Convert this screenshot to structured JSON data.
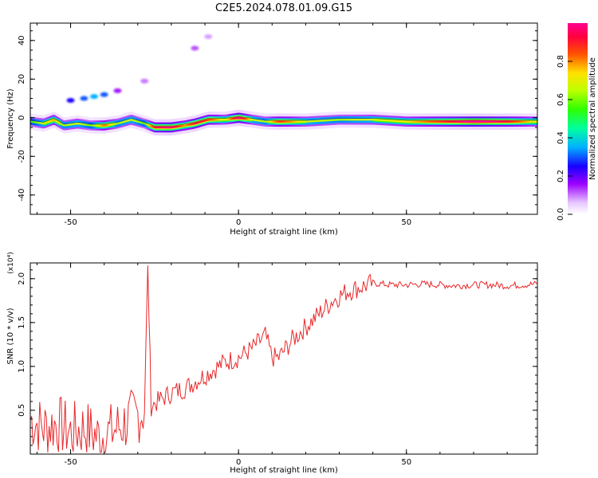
{
  "title": "C2E5.2024.078.01.09.G15",
  "chart_data": [
    {
      "type": "heatmap",
      "xlabel": "Height of straight line (km)",
      "ylabel": "Frequency (Hz)",
      "xlim": [
        -62,
        89
      ],
      "ylim": [
        -50,
        49
      ],
      "xticks": [
        -50,
        0,
        50
      ],
      "yticks": [
        -40,
        -20,
        0,
        20,
        40
      ],
      "colorbar": {
        "label": "Normalized spectral amplitude",
        "ticks": [
          "0.0",
          "0.2",
          "0.4",
          "0.6",
          "0.8"
        ],
        "range": [
          0,
          1
        ],
        "colors": [
          "#ffffff",
          "#e8c8ff",
          "#9a00ff",
          "#1a00ff",
          "#00b0ff",
          "#00ffa0",
          "#30ff00",
          "#c0ff00",
          "#ffe000",
          "#ff5000",
          "#ff0040",
          "#ff0090"
        ]
      },
      "ridge": [
        {
          "x": -62,
          "y": -2,
          "a": 0.45
        },
        {
          "x": -58,
          "y": -3,
          "a": 0.6
        },
        {
          "x": -55,
          "y": -1,
          "a": 0.7
        },
        {
          "x": -52,
          "y": -4,
          "a": 0.55
        },
        {
          "x": -48,
          "y": -3,
          "a": 0.6
        },
        {
          "x": -44,
          "y": -4,
          "a": 0.5
        },
        {
          "x": -40,
          "y": -4,
          "a": 0.75
        },
        {
          "x": -36,
          "y": -3,
          "a": 0.55
        },
        {
          "x": -32,
          "y": -1,
          "a": 0.6
        },
        {
          "x": -28,
          "y": -3,
          "a": 0.5
        },
        {
          "x": -25,
          "y": -5,
          "a": 0.85
        },
        {
          "x": -20,
          "y": -5,
          "a": 0.9
        },
        {
          "x": -16,
          "y": -4,
          "a": 0.7
        },
        {
          "x": -13,
          "y": -3,
          "a": 0.85
        },
        {
          "x": -9,
          "y": -1,
          "a": 0.8
        },
        {
          "x": -4,
          "y": -1,
          "a": 0.6
        },
        {
          "x": 0,
          "y": 0,
          "a": 0.95
        },
        {
          "x": 4,
          "y": -1,
          "a": 0.6
        },
        {
          "x": 8,
          "y": -2,
          "a": 0.55
        },
        {
          "x": 12,
          "y": -2,
          "a": 0.8
        },
        {
          "x": 20,
          "y": -2,
          "a": 0.6
        },
        {
          "x": 30,
          "y": -1,
          "a": 0.55
        },
        {
          "x": 40,
          "y": -1,
          "a": 0.6
        },
        {
          "x": 50,
          "y": -2,
          "a": 0.65
        },
        {
          "x": 60,
          "y": -2,
          "a": 0.8
        },
        {
          "x": 70,
          "y": -2,
          "a": 0.95
        },
        {
          "x": 80,
          "y": -2,
          "a": 0.85
        },
        {
          "x": 89,
          "y": -2,
          "a": 0.6
        }
      ],
      "scatter_features": [
        {
          "x": -50,
          "y": 9,
          "a": 0.25
        },
        {
          "x": -46,
          "y": 10,
          "a": 0.3
        },
        {
          "x": -43,
          "y": 11,
          "a": 0.35
        },
        {
          "x": -40,
          "y": 12,
          "a": 0.3
        },
        {
          "x": -36,
          "y": 14,
          "a": 0.15
        },
        {
          "x": -28,
          "y": 19,
          "a": 0.1
        },
        {
          "x": -13,
          "y": 36,
          "a": 0.12
        },
        {
          "x": -9,
          "y": 42,
          "a": 0.08
        }
      ]
    },
    {
      "type": "line",
      "xlabel": "Height of straight line (km)",
      "ylabel": "SNR (10 * v/v)",
      "ylabel_multiplier": "(x10⁴)",
      "xlim": [
        -62,
        89
      ],
      "ylim": [
        0,
        2.18
      ],
      "xticks": [
        -50,
        0,
        50
      ],
      "yticks": [
        0.5,
        1.0,
        1.5,
        2.0
      ],
      "ytick_labels": [
        "0.5",
        "1.0",
        "1.5",
        "2.0"
      ],
      "series": [
        {
          "color": "#e8282a",
          "x": [
            -62,
            -58,
            -54,
            -50,
            -46,
            -42,
            -38,
            -34,
            -30,
            -28,
            -27,
            -26,
            -24,
            -20,
            -16,
            -12,
            -8,
            -4,
            0,
            4,
            8,
            10,
            12,
            16,
            20,
            24,
            28,
            32,
            36,
            40,
            45,
            50,
            55,
            60,
            65,
            70,
            75,
            80,
            85,
            89
          ],
          "y": [
            0.4,
            0.3,
            0.35,
            0.25,
            0.3,
            0.2,
            0.25,
            0.35,
            0.45,
            0.5,
            2.15,
            0.55,
            0.6,
            0.7,
            0.75,
            0.85,
            0.95,
            1.05,
            1.1,
            1.2,
            1.35,
            1.1,
            1.1,
            1.3,
            1.45,
            1.6,
            1.75,
            1.85,
            1.9,
            1.95,
            1.93,
            1.93,
            1.94,
            1.93,
            1.92,
            1.93,
            1.93,
            1.92,
            1.93,
            1.94
          ]
        }
      ]
    }
  ]
}
